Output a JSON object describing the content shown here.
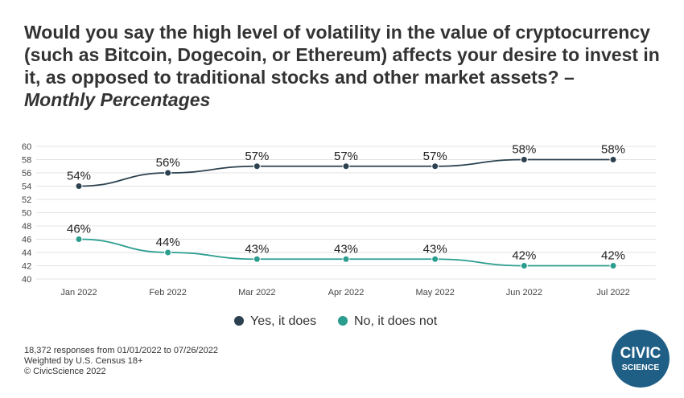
{
  "title": "Would you say the high level of volatility in the value of cryptocurrency (such as Bitcoin, Dogecoin, or Ethereum) affects your desire to invest in it, as opposed to traditional stocks and other market assets? –",
  "subtitle": "Monthly Percentages",
  "footnotes": [
    "18,372 responses from 01/01/2022 to 07/26/2022",
    "Weighted by U.S. Census 18+",
    "© CivicScience 2022"
  ],
  "logo": {
    "line1": "CIVIC",
    "line2": "SCIENCE"
  },
  "colors": {
    "yes": "#2b4150",
    "no": "#2a9d8f",
    "grid": "#e3e3e3",
    "logo": "#1f5f86"
  },
  "chart_data": {
    "type": "line",
    "categories": [
      "Jan 2022",
      "Feb 2022",
      "Mar 2022",
      "Apr 2022",
      "May 2022",
      "Jun 2022",
      "Jul 2022"
    ],
    "yticks": [
      40,
      42,
      44,
      46,
      48,
      50,
      52,
      54,
      56,
      58,
      60
    ],
    "ylim": [
      40,
      60
    ],
    "grid": true,
    "legend_position": "bottom",
    "series": [
      {
        "name": "Yes, it does",
        "values": [
          54,
          56,
          57,
          57,
          57,
          58,
          58
        ],
        "labels": [
          "54%",
          "56%",
          "57%",
          "57%",
          "57%",
          "58%",
          "58%"
        ]
      },
      {
        "name": "No, it does not",
        "values": [
          46,
          44,
          43,
          43,
          43,
          42,
          42
        ],
        "labels": [
          "46%",
          "44%",
          "43%",
          "43%",
          "43%",
          "42%",
          "42%"
        ]
      }
    ]
  }
}
